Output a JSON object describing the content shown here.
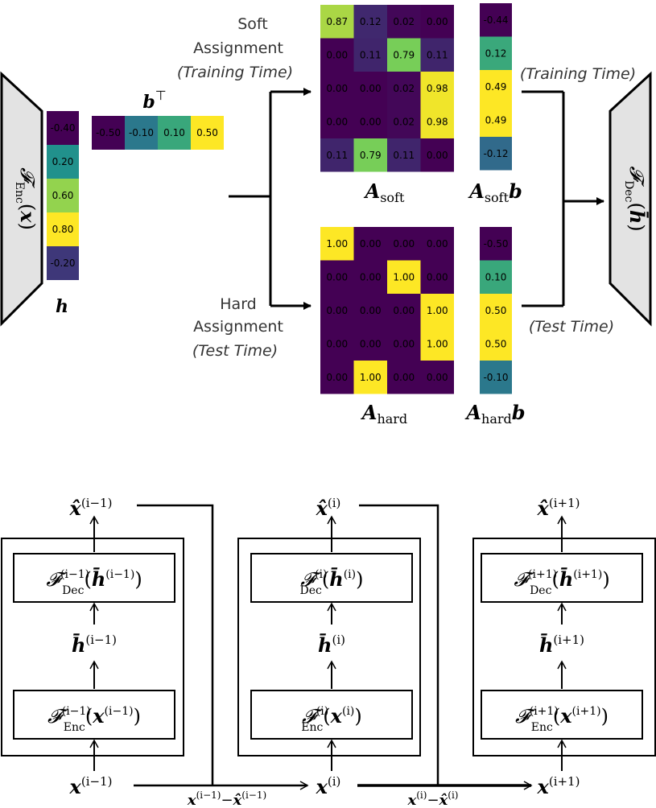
{
  "top": {
    "encoder_label": "𝓕Enc(𝒙)",
    "decoder_label": "𝓕Dec(𝒉̄)",
    "h_label": "𝒉",
    "b_label": "𝒃⊤",
    "h_values": [
      "-0.40",
      "0.20",
      "0.60",
      "0.80",
      "-0.20"
    ],
    "b_values": [
      "-0.50",
      "-0.10",
      "0.10",
      "0.50"
    ],
    "soft_label_line1": "Soft",
    "soft_label_line2": "Assignment",
    "soft_label_line3": "(Training Time)",
    "hard_label_line1": "Hard",
    "hard_label_line2": "Assignment",
    "hard_label_line3": "(Test Time)",
    "training_time_label": "(Training Time)",
    "test_time_label": "(Test Time)",
    "a_soft": [
      [
        "0.87",
        "0.12",
        "0.02",
        "0.00"
      ],
      [
        "0.00",
        "0.11",
        "0.79",
        "0.11"
      ],
      [
        "0.00",
        "0.00",
        "0.02",
        "0.98"
      ],
      [
        "0.00",
        "0.00",
        "0.02",
        "0.98"
      ],
      [
        "0.11",
        "0.79",
        "0.11",
        "0.00"
      ]
    ],
    "a_hard": [
      [
        "1.00",
        "0.00",
        "0.00",
        "0.00"
      ],
      [
        "0.00",
        "0.00",
        "1.00",
        "0.00"
      ],
      [
        "0.00",
        "0.00",
        "0.00",
        "1.00"
      ],
      [
        "0.00",
        "0.00",
        "0.00",
        "1.00"
      ],
      [
        "0.00",
        "1.00",
        "0.00",
        "0.00"
      ]
    ],
    "a_soft_b": [
      "-0.44",
      "0.12",
      "0.49",
      "0.49",
      "-0.12"
    ],
    "a_hard_b": [
      "-0.50",
      "0.10",
      "0.50",
      "0.50",
      "-0.10"
    ],
    "a_soft_label": "𝑨soft",
    "a_hard_label": "𝑨hard",
    "a_soft_b_label": "𝑨soft𝒃",
    "a_hard_b_label": "𝑨hard𝒃"
  },
  "bottom": {
    "stages": [
      {
        "sup": "(i−1)"
      },
      {
        "sup": "(i)"
      },
      {
        "sup": "(i+1)"
      }
    ],
    "residual_labels": [
      "𝒙(i−1)−𝒙̂(i−1)",
      "𝒙(i)−𝒙̂(i)"
    ]
  }
}
